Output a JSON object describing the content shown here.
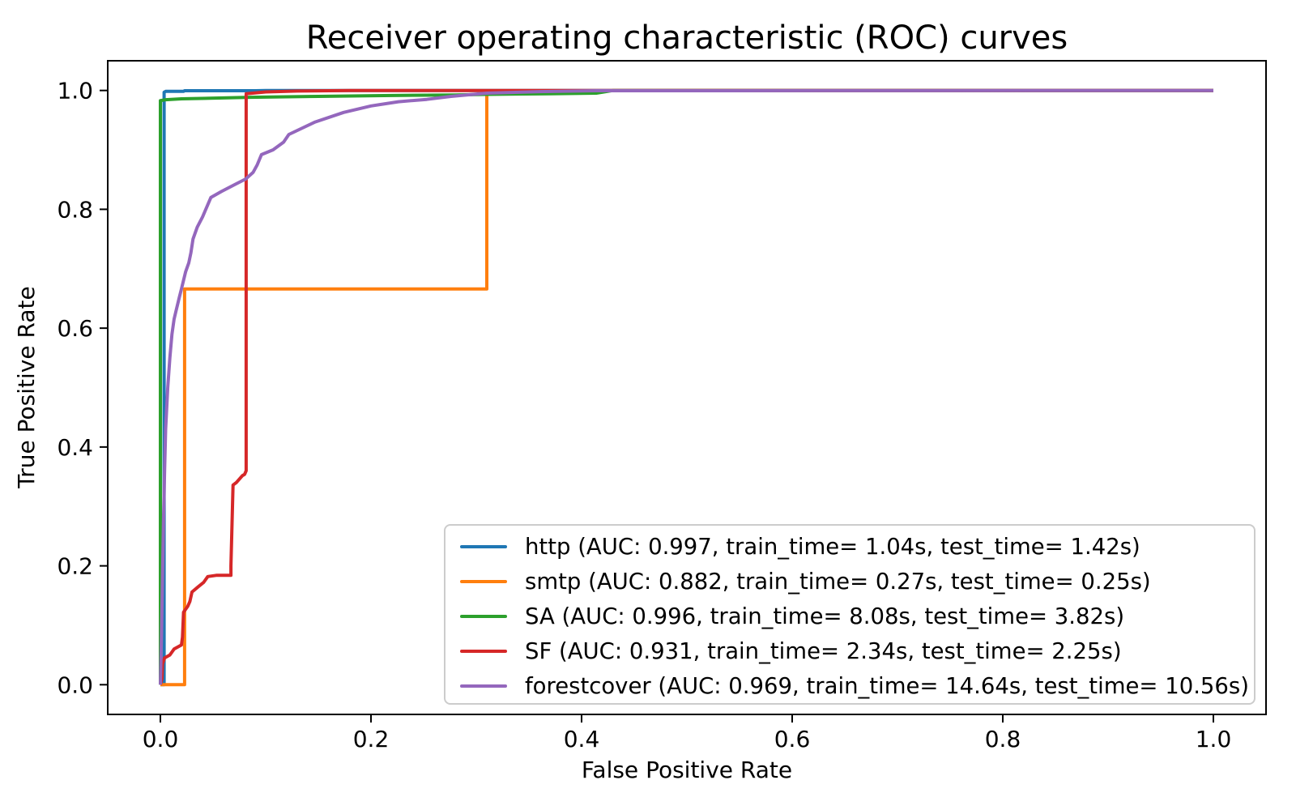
{
  "chart_data": {
    "type": "line",
    "title": "Receiver operating characteristic (ROC) curves",
    "xlabel": "False Positive Rate",
    "ylabel": "True Positive Rate",
    "xlim": [
      -0.05,
      1.05
    ],
    "ylim": [
      -0.05,
      1.05
    ],
    "x_ticks": {
      "values": [
        0.0,
        0.2,
        0.4,
        0.6,
        0.8,
        1.0
      ],
      "labels": [
        "0.0",
        "0.2",
        "0.4",
        "0.6",
        "0.8",
        "1.0"
      ]
    },
    "y_ticks": {
      "values": [
        0.0,
        0.2,
        0.4,
        0.6,
        0.8,
        1.0
      ],
      "labels": [
        "0.0",
        "0.2",
        "0.4",
        "0.6",
        "0.8",
        "1.0"
      ]
    },
    "grid": false,
    "legend_position": "lower right",
    "series": [
      {
        "name": "http",
        "label": "http (AUC: 0.997, train_time= 1.04s, test_time= 1.42s)",
        "auc": 0.997,
        "train_time_s": 1.04,
        "test_time_s": 1.42,
        "color": "#1f77b4",
        "points": [
          [
            0,
            0
          ],
          [
            0.0035,
            0
          ],
          [
            0.0035,
            0.997
          ],
          [
            0.005,
            0.9985
          ],
          [
            0.022,
            0.9985
          ],
          [
            0.023,
            0.9995
          ],
          [
            0.09,
            0.9995
          ],
          [
            0.1,
            1.0
          ],
          [
            1,
            1
          ]
        ]
      },
      {
        "name": "smtp",
        "label": "smtp (AUC: 0.882, train_time= 0.27s, test_time= 0.25s)",
        "auc": 0.882,
        "train_time_s": 0.27,
        "test_time_s": 0.25,
        "color": "#ff7f0e",
        "points": [
          [
            0,
            0
          ],
          [
            0.023,
            0
          ],
          [
            0.023,
            0.666
          ],
          [
            0.31,
            0.666
          ],
          [
            0.31,
            0.995
          ],
          [
            0.33,
            0.9995
          ],
          [
            1,
            1
          ]
        ]
      },
      {
        "name": "SA",
        "label": "SA (AUC: 0.996, train_time= 8.08s, test_time= 3.82s)",
        "auc": 0.996,
        "train_time_s": 8.08,
        "test_time_s": 3.82,
        "color": "#2ca02c",
        "points": [
          [
            0,
            0
          ],
          [
            0,
            0.983
          ],
          [
            0.005,
            0.9845
          ],
          [
            0.02,
            0.986
          ],
          [
            0.06,
            0.9875
          ],
          [
            0.085,
            0.9885
          ],
          [
            0.15,
            0.99
          ],
          [
            0.22,
            0.9915
          ],
          [
            0.28,
            0.9925
          ],
          [
            0.31,
            0.9935
          ],
          [
            0.37,
            0.9945
          ],
          [
            0.414,
            0.9955
          ],
          [
            0.43,
            1.0
          ],
          [
            1,
            1
          ]
        ]
      },
      {
        "name": "SF",
        "label": "SF (AUC: 0.931, train_time= 2.34s, test_time= 2.25s)",
        "auc": 0.931,
        "train_time_s": 2.34,
        "test_time_s": 2.25,
        "color": "#d62728",
        "points": [
          [
            0,
            0
          ],
          [
            0.0015,
            0.01
          ],
          [
            0.002,
            0.035
          ],
          [
            0.004,
            0.045
          ],
          [
            0.009,
            0.05
          ],
          [
            0.013,
            0.06
          ],
          [
            0.016,
            0.063
          ],
          [
            0.02,
            0.067
          ],
          [
            0.021,
            0.08
          ],
          [
            0.022,
            0.122
          ],
          [
            0.026,
            0.132
          ],
          [
            0.028,
            0.14
          ],
          [
            0.03,
            0.156
          ],
          [
            0.036,
            0.165
          ],
          [
            0.041,
            0.172
          ],
          [
            0.045,
            0.182
          ],
          [
            0.053,
            0.184
          ],
          [
            0.067,
            0.184
          ],
          [
            0.067,
            0.2
          ],
          [
            0.069,
            0.336
          ],
          [
            0.072,
            0.34
          ],
          [
            0.078,
            0.352
          ],
          [
            0.08,
            0.354
          ],
          [
            0.0815,
            0.36
          ],
          [
            0.0815,
            0.9945
          ],
          [
            0.1,
            0.9975
          ],
          [
            0.13,
            0.999
          ],
          [
            0.18,
            1.0
          ],
          [
            1,
            1
          ]
        ]
      },
      {
        "name": "forestcover",
        "label": "forestcover (AUC: 0.969, train_time= 14.64s, test_time= 10.56s)",
        "auc": 0.969,
        "train_time_s": 14.64,
        "test_time_s": 10.56,
        "color": "#9467bd",
        "points": [
          [
            0,
            0
          ],
          [
            0.001,
            0.08
          ],
          [
            0.002,
            0.18
          ],
          [
            0.003,
            0.28
          ],
          [
            0.004,
            0.36
          ],
          [
            0.005,
            0.43
          ],
          [
            0.007,
            0.5
          ],
          [
            0.009,
            0.55
          ],
          [
            0.011,
            0.59
          ],
          [
            0.013,
            0.615
          ],
          [
            0.015,
            0.63
          ],
          [
            0.018,
            0.652
          ],
          [
            0.02,
            0.666
          ],
          [
            0.024,
            0.695
          ],
          [
            0.027,
            0.71
          ],
          [
            0.029,
            0.727
          ],
          [
            0.031,
            0.75
          ],
          [
            0.035,
            0.77
          ],
          [
            0.04,
            0.787
          ],
          [
            0.048,
            0.82
          ],
          [
            0.058,
            0.83
          ],
          [
            0.071,
            0.842
          ],
          [
            0.081,
            0.851
          ],
          [
            0.088,
            0.862
          ],
          [
            0.092,
            0.875
          ],
          [
            0.096,
            0.892
          ],
          [
            0.107,
            0.9
          ],
          [
            0.117,
            0.913
          ],
          [
            0.122,
            0.926
          ],
          [
            0.147,
            0.947
          ],
          [
            0.174,
            0.963
          ],
          [
            0.2,
            0.974
          ],
          [
            0.226,
            0.981
          ],
          [
            0.253,
            0.985
          ],
          [
            0.276,
            0.99
          ],
          [
            0.31,
            0.9955
          ],
          [
            0.36,
            0.998
          ],
          [
            0.414,
            0.9995
          ],
          [
            1,
            1
          ]
        ]
      }
    ]
  }
}
